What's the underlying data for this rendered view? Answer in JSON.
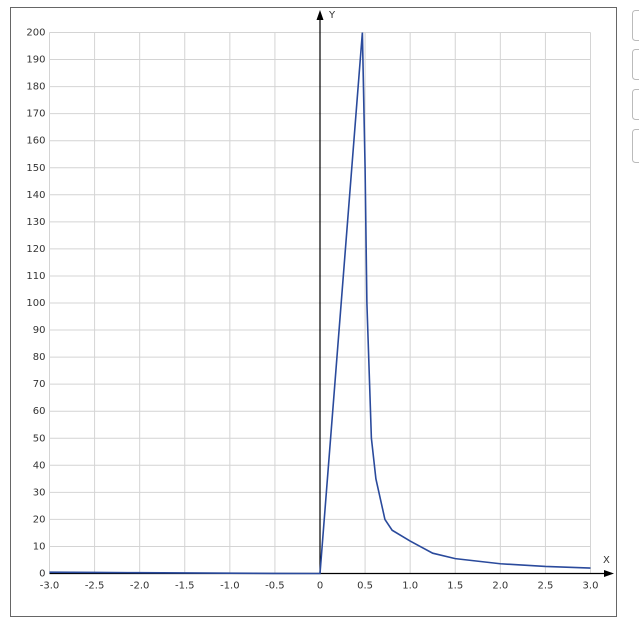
{
  "chart_data": {
    "type": "line",
    "x_label": "X",
    "y_label": "Y",
    "x": [
      -3.0,
      -2.5,
      -2.0,
      -1.5,
      -1.0,
      -0.5,
      0.0,
      0.47,
      0.5,
      0.52,
      0.55,
      0.57,
      0.62,
      0.72,
      0.8,
      1.0,
      1.25,
      1.5,
      2.0,
      2.5,
      3.0
    ],
    "values": [
      0.5,
      0.4,
      0.3,
      0.2,
      0.1,
      0.02,
      0,
      200,
      150,
      100,
      70,
      50,
      35,
      20,
      16,
      12,
      7.5,
      5.5,
      3.6,
      2.6,
      2.0
    ],
    "color": "#2a4a9c",
    "xlim": [
      -3,
      3
    ],
    "xticks": [
      {
        "value": -3,
        "label": "-3.0"
      },
      -2.5,
      {
        "value": -2,
        "label": "-2.0"
      },
      -1.5,
      {
        "value": -1,
        "label": "-1.0"
      },
      -0.5,
      0,
      0.5,
      {
        "value": 1,
        "label": "1.0"
      },
      1.5,
      {
        "value": 2,
        "label": "2.0"
      },
      2.5,
      {
        "value": 3,
        "label": "3.0"
      }
    ],
    "ylim": [
      0,
      200
    ],
    "yticks": [
      0,
      10,
      20,
      30,
      40,
      50,
      60,
      70,
      80,
      90,
      100,
      110,
      120,
      130,
      140,
      150,
      160,
      170,
      180,
      190,
      200
    ],
    "grid": true
  }
}
